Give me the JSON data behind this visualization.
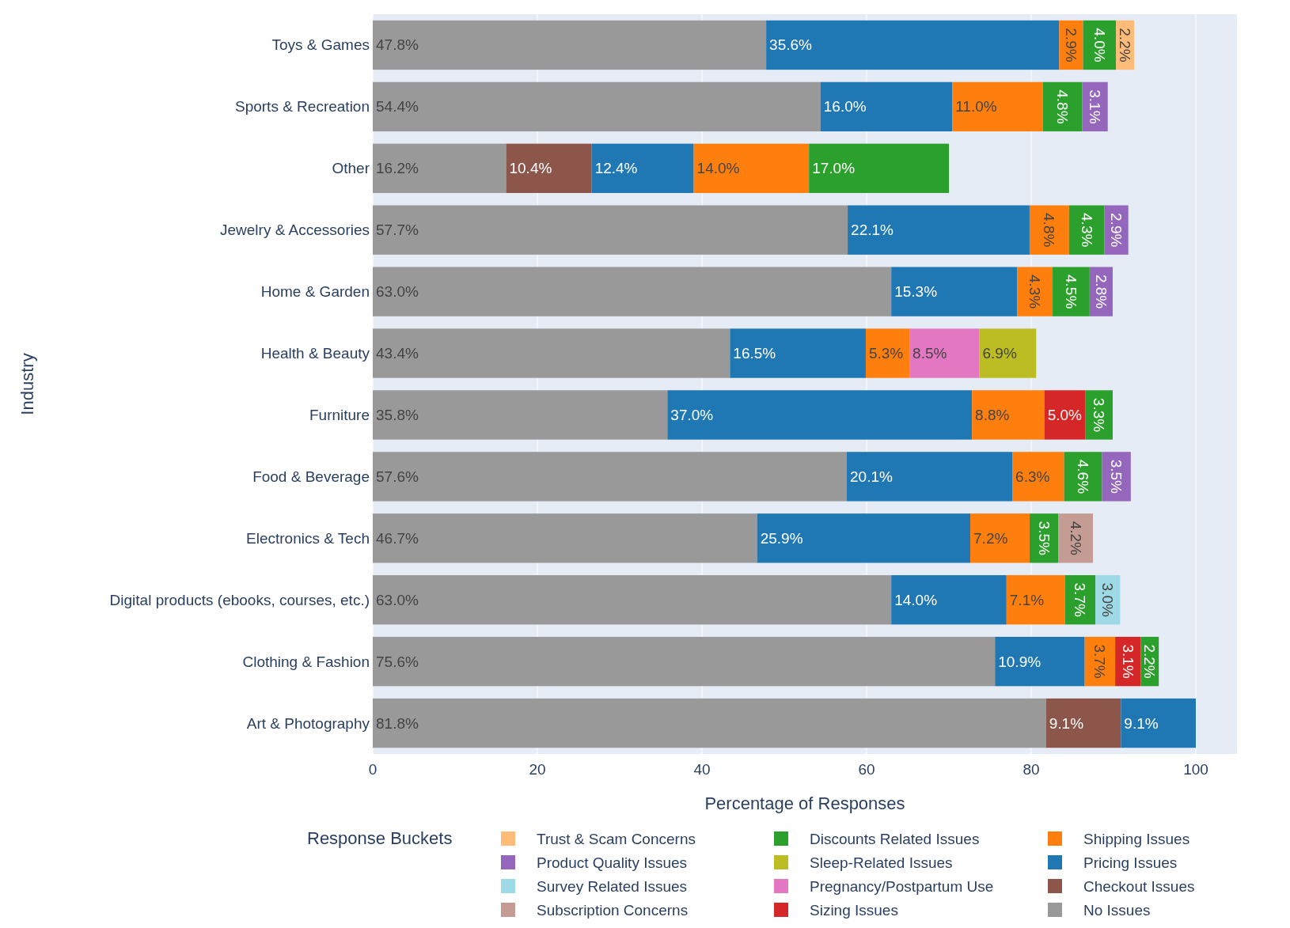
{
  "chart_data": {
    "type": "bar",
    "orientation": "horizontal",
    "stacked": true,
    "xlabel": "Percentage of Responses",
    "ylabel": "Industry",
    "legend_title": "Response Buckets",
    "legend": "bottom",
    "grid": "x",
    "xlim": [
      0,
      105
    ],
    "xticks": [
      0,
      20,
      40,
      60,
      80,
      100
    ],
    "categories": [
      "Toys & Games",
      "Sports & Recreation",
      "Other",
      "Jewelry & Accessories",
      "Home & Garden",
      "Health & Beauty",
      "Furniture",
      "Food & Beverage",
      "Electronics & Tech",
      "Digital products (ebooks, courses, etc.)",
      "Clothing & Fashion",
      "Art & Photography"
    ],
    "series": [
      {
        "name": "No Issues",
        "color": "#999999",
        "values": [
          47.8,
          54.4,
          16.2,
          57.7,
          63.0,
          43.4,
          35.8,
          57.6,
          46.7,
          63.0,
          75.6,
          81.8
        ],
        "value_labels": [
          "47.8%",
          "54.4%",
          "16.2%",
          "57.7%",
          "63.0%",
          "43.4%",
          "35.8%",
          "57.6%",
          "46.7%",
          "63.0%",
          "75.6%",
          "81.8%"
        ]
      },
      {
        "name": "Checkout Issues",
        "color": "#8c564b",
        "values": [
          null,
          null,
          10.4,
          null,
          null,
          null,
          null,
          null,
          null,
          null,
          null,
          9.1
        ],
        "value_labels": [
          null,
          null,
          "10.4%",
          null,
          null,
          null,
          null,
          null,
          null,
          null,
          null,
          "9.1%"
        ]
      },
      {
        "name": "Pricing Issues",
        "color": "#1f77b4",
        "values": [
          35.6,
          16.0,
          12.4,
          22.1,
          15.3,
          16.5,
          37.0,
          20.1,
          25.9,
          14.0,
          10.9,
          9.1
        ],
        "value_labels": [
          "35.6%",
          "16.0%",
          "12.4%",
          "22.1%",
          "15.3%",
          "16.5%",
          "37.0%",
          "20.1%",
          "25.9%",
          "14.0%",
          "10.9%",
          "9.1%"
        ]
      },
      {
        "name": "Shipping Issues",
        "color": "#ff7f0e",
        "values": [
          2.9,
          11.0,
          14.0,
          4.8,
          4.3,
          5.3,
          8.8,
          6.3,
          7.2,
          7.1,
          3.7,
          null
        ],
        "value_labels": [
          "2.9%",
          "11.0%",
          "14.0%",
          "4.8%",
          "4.3%",
          "5.3%",
          "8.8%",
          "6.3%",
          "7.2%",
          "7.1%",
          "3.7%",
          null
        ]
      },
      {
        "name": "Sizing Issues",
        "color": "#d62728",
        "values": [
          null,
          null,
          null,
          null,
          null,
          null,
          5.0,
          null,
          null,
          null,
          3.1,
          null
        ],
        "value_labels": [
          null,
          null,
          null,
          null,
          null,
          null,
          "5.0%",
          null,
          null,
          null,
          "3.1%",
          null
        ]
      },
      {
        "name": "Pregnancy/Postpartum Use",
        "color": "#e377c2",
        "values": [
          null,
          null,
          null,
          null,
          null,
          8.5,
          null,
          null,
          null,
          null,
          null,
          null
        ],
        "value_labels": [
          null,
          null,
          null,
          null,
          null,
          "8.5%",
          null,
          null,
          null,
          null,
          null,
          null
        ]
      },
      {
        "name": "Sleep-Related Issues",
        "color": "#bcbd22",
        "values": [
          null,
          null,
          null,
          null,
          null,
          6.9,
          null,
          null,
          null,
          null,
          null,
          null
        ],
        "value_labels": [
          null,
          null,
          null,
          null,
          null,
          "6.9%",
          null,
          null,
          null,
          null,
          null,
          null
        ]
      },
      {
        "name": "Discounts Related Issues",
        "color": "#2ca02c",
        "values": [
          4.0,
          4.8,
          17.0,
          4.3,
          4.5,
          null,
          3.3,
          4.6,
          3.5,
          3.7,
          2.2,
          null
        ],
        "value_labels": [
          "4.0%",
          "4.8%",
          "17.0%",
          "4.3%",
          "4.5%",
          null,
          "3.3%",
          "4.6%",
          "3.5%",
          "3.7%",
          "2.2%",
          null
        ]
      },
      {
        "name": "Subscription Concerns",
        "color": "#c49c94",
        "values": [
          null,
          null,
          null,
          null,
          null,
          null,
          null,
          null,
          4.2,
          null,
          null,
          null
        ],
        "value_labels": [
          null,
          null,
          null,
          null,
          null,
          null,
          null,
          null,
          "4.2%",
          null,
          null,
          null
        ]
      },
      {
        "name": "Survey Related Issues",
        "color": "#9edae5",
        "values": [
          null,
          null,
          null,
          null,
          null,
          null,
          null,
          null,
          null,
          3.0,
          null,
          null
        ],
        "value_labels": [
          null,
          null,
          null,
          null,
          null,
          null,
          null,
          null,
          null,
          "3.0%",
          null,
          null
        ]
      },
      {
        "name": "Product Quality Issues",
        "color": "#9467bd",
        "values": [
          null,
          3.1,
          null,
          2.9,
          2.8,
          null,
          null,
          3.5,
          null,
          null,
          null,
          null
        ],
        "value_labels": [
          null,
          "3.1%",
          null,
          "2.9%",
          "2.8%",
          null,
          null,
          "3.5%",
          null,
          null,
          null,
          null
        ]
      },
      {
        "name": "Trust & Scam Concerns",
        "color": "#ffbb78",
        "values": [
          2.2,
          null,
          null,
          null,
          null,
          null,
          null,
          null,
          null,
          null,
          null,
          null
        ],
        "value_labels": [
          "2.2%",
          null,
          null,
          null,
          null,
          null,
          null,
          null,
          null,
          null,
          null,
          null
        ]
      }
    ]
  }
}
